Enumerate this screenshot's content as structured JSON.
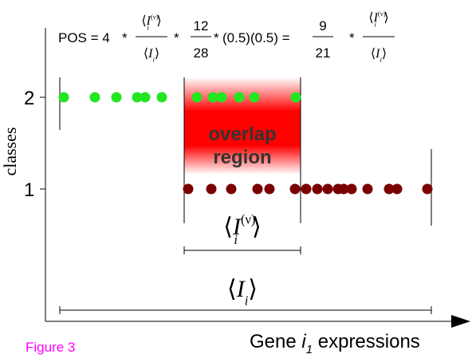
{
  "equation": {
    "lhs": "POS = 4",
    "op": "*",
    "n1": "12",
    "d1": "28",
    "mid": "(0.5)(0.5) =",
    "n2": "9",
    "d2": "21"
  },
  "symbol": {
    "open": "⟨",
    "close": "⟩",
    "letter": "I",
    "sub": "i",
    "sup": "(ν)"
  },
  "y_axis": {
    "title": "classes",
    "ticks": [
      "2",
      "1"
    ]
  },
  "overlap_label": [
    "overlap",
    "region"
  ],
  "x_axis": {
    "title_prefix": "Gene ",
    "title_var": "i",
    "title_sub": "1",
    "title_suffix": " expressions"
  },
  "figure_label": "Figure 3"
}
